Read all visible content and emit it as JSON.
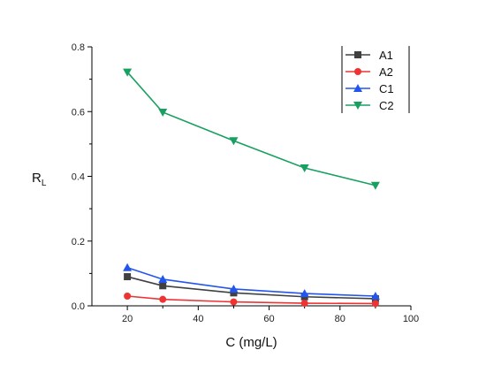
{
  "chart_data": {
    "type": "line",
    "title": "",
    "xlabel": "C (mg/L)",
    "ylabel_main": "R",
    "ylabel_sub": "L",
    "xlim": [
      10,
      100
    ],
    "ylim": [
      0,
      0.8
    ],
    "xticks": [
      20,
      40,
      60,
      80,
      100
    ],
    "xtick_labels": [
      "20",
      "40",
      "60",
      "80",
      "100"
    ],
    "yticks": [
      0.0,
      0.2,
      0.4,
      0.6,
      0.8
    ],
    "ytick_labels": [
      "0.0",
      "0.2",
      "0.4",
      "0.6",
      "0.8"
    ],
    "grid": false,
    "legend": "top-right",
    "x": [
      20,
      30,
      50,
      70,
      90
    ],
    "series": [
      {
        "name": "A1",
        "values": [
          0.09,
          0.062,
          0.04,
          0.028,
          0.022
        ],
        "color": "#404040",
        "marker": "square"
      },
      {
        "name": "A2",
        "values": [
          0.03,
          0.02,
          0.012,
          0.008,
          0.007
        ],
        "color": "#ee3333",
        "marker": "circle"
      },
      {
        "name": "C1",
        "values": [
          0.118,
          0.082,
          0.052,
          0.038,
          0.03
        ],
        "color": "#2255ee",
        "marker": "triangle-up"
      },
      {
        "name": "C2",
        "values": [
          0.722,
          0.598,
          0.51,
          0.426,
          0.372
        ],
        "color": "#18a060",
        "marker": "triangle-down"
      }
    ]
  }
}
